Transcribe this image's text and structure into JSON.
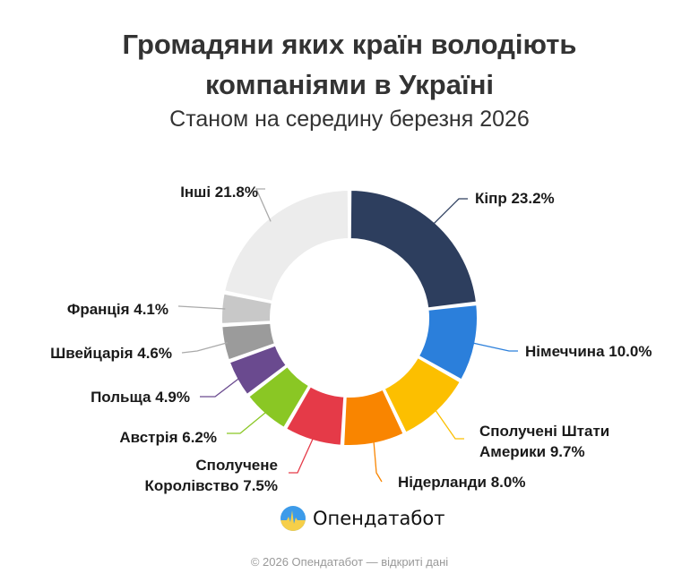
{
  "header": {
    "title_line1": "Громадяни яких країн володіють",
    "title_line2": "компаніями в Україні",
    "subtitle": "Станом на середину березня 2026"
  },
  "chart_data": {
    "type": "pie",
    "donut": true,
    "title": "Громадяни яких країн володіють компаніями в Україні",
    "subtitle": "Станом на середину березня 2026",
    "unit": "%",
    "categories": [
      "Кіпр",
      "Німеччина",
      "Сполучені Штати Америки",
      "Нідерланди",
      "Сполучене Королівство",
      "Австрія",
      "Польща",
      "Швейцарія",
      "Франція",
      "Інші"
    ],
    "values": [
      23.2,
      10.0,
      9.7,
      8.0,
      7.5,
      6.2,
      4.9,
      4.6,
      4.1,
      21.8
    ],
    "colors": [
      "#2d3e5e",
      "#2b7fdb",
      "#fcbf00",
      "#f98500",
      "#e53a48",
      "#8ac724",
      "#6a4a8f",
      "#9b9b9b",
      "#c8c8c8",
      "#ececec"
    ],
    "labels": [
      {
        "line1": "Кіпр 23.2%",
        "line2": ""
      },
      {
        "line1": "Німеччина 10.0%",
        "line2": ""
      },
      {
        "line1": "Сполучені Штати",
        "line2": "Америки 9.7%"
      },
      {
        "line1": "Нідерланди 8.0%",
        "line2": ""
      },
      {
        "line1": "Сполучене",
        "line2": "Королівство 7.5%"
      },
      {
        "line1": "Австрія 6.2%",
        "line2": ""
      },
      {
        "line1": "Польща 4.9%",
        "line2": ""
      },
      {
        "line1": "Швейцарія 4.6%",
        "line2": ""
      },
      {
        "line1": "Франція 4.1%",
        "line2": ""
      },
      {
        "line1": "Інші 21.8%",
        "line2": ""
      }
    ],
    "start_angle_deg": 0,
    "direction": "clockwise",
    "legend_position": "outside-labels"
  },
  "brand": {
    "name": "Опендатабот",
    "logo_icon": "opendatabot-logo-icon"
  },
  "footer": {
    "text": "© 2026 Опендатабот — відкриті дані"
  }
}
